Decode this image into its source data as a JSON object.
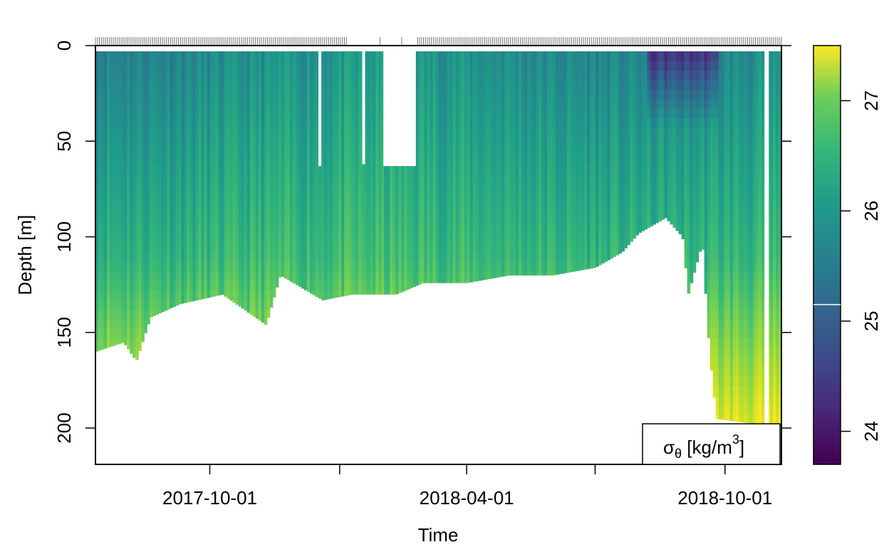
{
  "chart_data": {
    "type": "heatmap",
    "title": "",
    "xlabel": "Time",
    "ylabel": "Depth [m]",
    "x_range": [
      "2017-07-12",
      "2018-11-10"
    ],
    "x_ticks": [
      {
        "date": "2017-10-01",
        "label": "2017-10-01"
      },
      {
        "date": "2018-01-01",
        "label": ""
      },
      {
        "date": "2018-04-01",
        "label": "2018-04-01"
      },
      {
        "date": "2018-07-01",
        "label": ""
      },
      {
        "date": "2018-10-01",
        "label": "2018-10-01"
      }
    ],
    "ylim": [
      0,
      219
    ],
    "y_reversed": true,
    "y_ticks": [
      0,
      50,
      100,
      150,
      200
    ],
    "y_tick_labels": [
      "0",
      "50",
      "100",
      "150",
      "200"
    ],
    "colorbar": {
      "range": [
        23.7,
        27.5
      ],
      "ticks": [
        24,
        25,
        26,
        27
      ],
      "tick_labels": [
        "24",
        "25",
        "26",
        "27"
      ],
      "colormap": "viridis",
      "marker_value": 25.15
    },
    "legend_label": "σθ [kg/m³]",
    "legend_main": "σ",
    "legend_sub": "θ",
    "legend_unit": " [kg/m",
    "legend_sup": "3",
    "legend_close": "]",
    "legend_position": "bottom-right",
    "profile_bottom_depth": [
      {
        "date": "2017-07-12",
        "depth": 160
      },
      {
        "date": "2017-08-01",
        "depth": 155
      },
      {
        "date": "2017-08-10",
        "depth": 165
      },
      {
        "date": "2017-08-20",
        "depth": 142
      },
      {
        "date": "2017-09-10",
        "depth": 135
      },
      {
        "date": "2017-10-10",
        "depth": 130
      },
      {
        "date": "2017-11-10",
        "depth": 146
      },
      {
        "date": "2017-11-20",
        "depth": 120
      },
      {
        "date": "2017-12-20",
        "depth": 133
      },
      {
        "date": "2018-01-10",
        "depth": 130
      },
      {
        "date": "2018-02-10",
        "depth": 130
      },
      {
        "date": "2018-03-01",
        "depth": 124
      },
      {
        "date": "2018-04-01",
        "depth": 124
      },
      {
        "date": "2018-05-01",
        "depth": 120
      },
      {
        "date": "2018-06-01",
        "depth": 120
      },
      {
        "date": "2018-07-01",
        "depth": 116
      },
      {
        "date": "2018-07-20",
        "depth": 108
      },
      {
        "date": "2018-08-01",
        "depth": 98
      },
      {
        "date": "2018-08-20",
        "depth": 90
      },
      {
        "date": "2018-09-01",
        "depth": 100
      },
      {
        "date": "2018-09-05",
        "depth": 130
      },
      {
        "date": "2018-09-15",
        "depth": 103
      },
      {
        "date": "2018-09-20",
        "depth": 160
      },
      {
        "date": "2018-09-25",
        "depth": 195
      },
      {
        "date": "2018-10-15",
        "depth": 197
      },
      {
        "date": "2018-11-05",
        "depth": 199
      },
      {
        "date": "2018-11-10",
        "depth": 199
      }
    ],
    "data_gaps": [
      {
        "start": "2017-12-17",
        "end": "2017-12-19",
        "max_depth": 63
      },
      {
        "start": "2018-01-17",
        "end": "2018-01-19",
        "max_depth": 62
      },
      {
        "start": "2018-02-01",
        "end": "2018-02-24",
        "max_depth": 63
      },
      {
        "start": "2018-10-29",
        "end": "2018-11-01",
        "max_depth": 200
      }
    ]
  }
}
